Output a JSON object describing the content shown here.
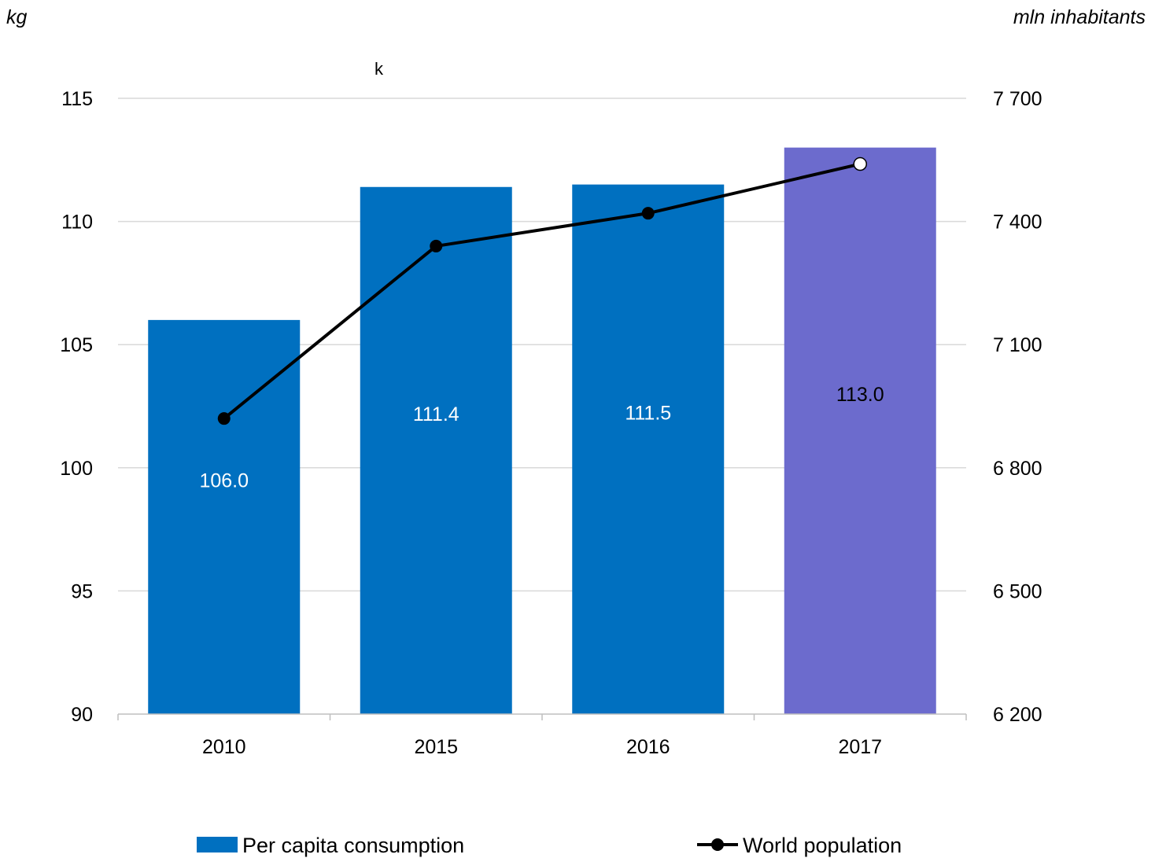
{
  "chart_data": {
    "type": "bar",
    "categories": [
      "2010",
      "2015",
      "2016",
      "2017"
    ],
    "y_left_label": "kg",
    "y_right_label": "mln inhabitants",
    "stray_mark": "k",
    "y_left_ticks": [
      "90",
      "95",
      "100",
      "105",
      "110",
      "115"
    ],
    "y_right_ticks": [
      "6 200",
      "6 500",
      "6 800",
      "7 100",
      "7 400",
      "7 700"
    ],
    "ylim_left": [
      90,
      115
    ],
    "ylim_right": [
      6200,
      7700
    ],
    "grid": true,
    "legend_position": "bottom",
    "bars": {
      "name": "Per capita consumption",
      "values": [
        106.0,
        111.4,
        111.5,
        113.0
      ],
      "labels": [
        "106.0",
        "111.4",
        "111.5",
        "113.0"
      ],
      "colors": [
        "#0070c0",
        "#0070c0",
        "#0070c0",
        "#6c6bcd"
      ]
    },
    "line": {
      "name": "World population",
      "values": [
        6920,
        7340,
        7420,
        7540
      ],
      "color": "#000000",
      "last_point_hollow": true
    }
  }
}
